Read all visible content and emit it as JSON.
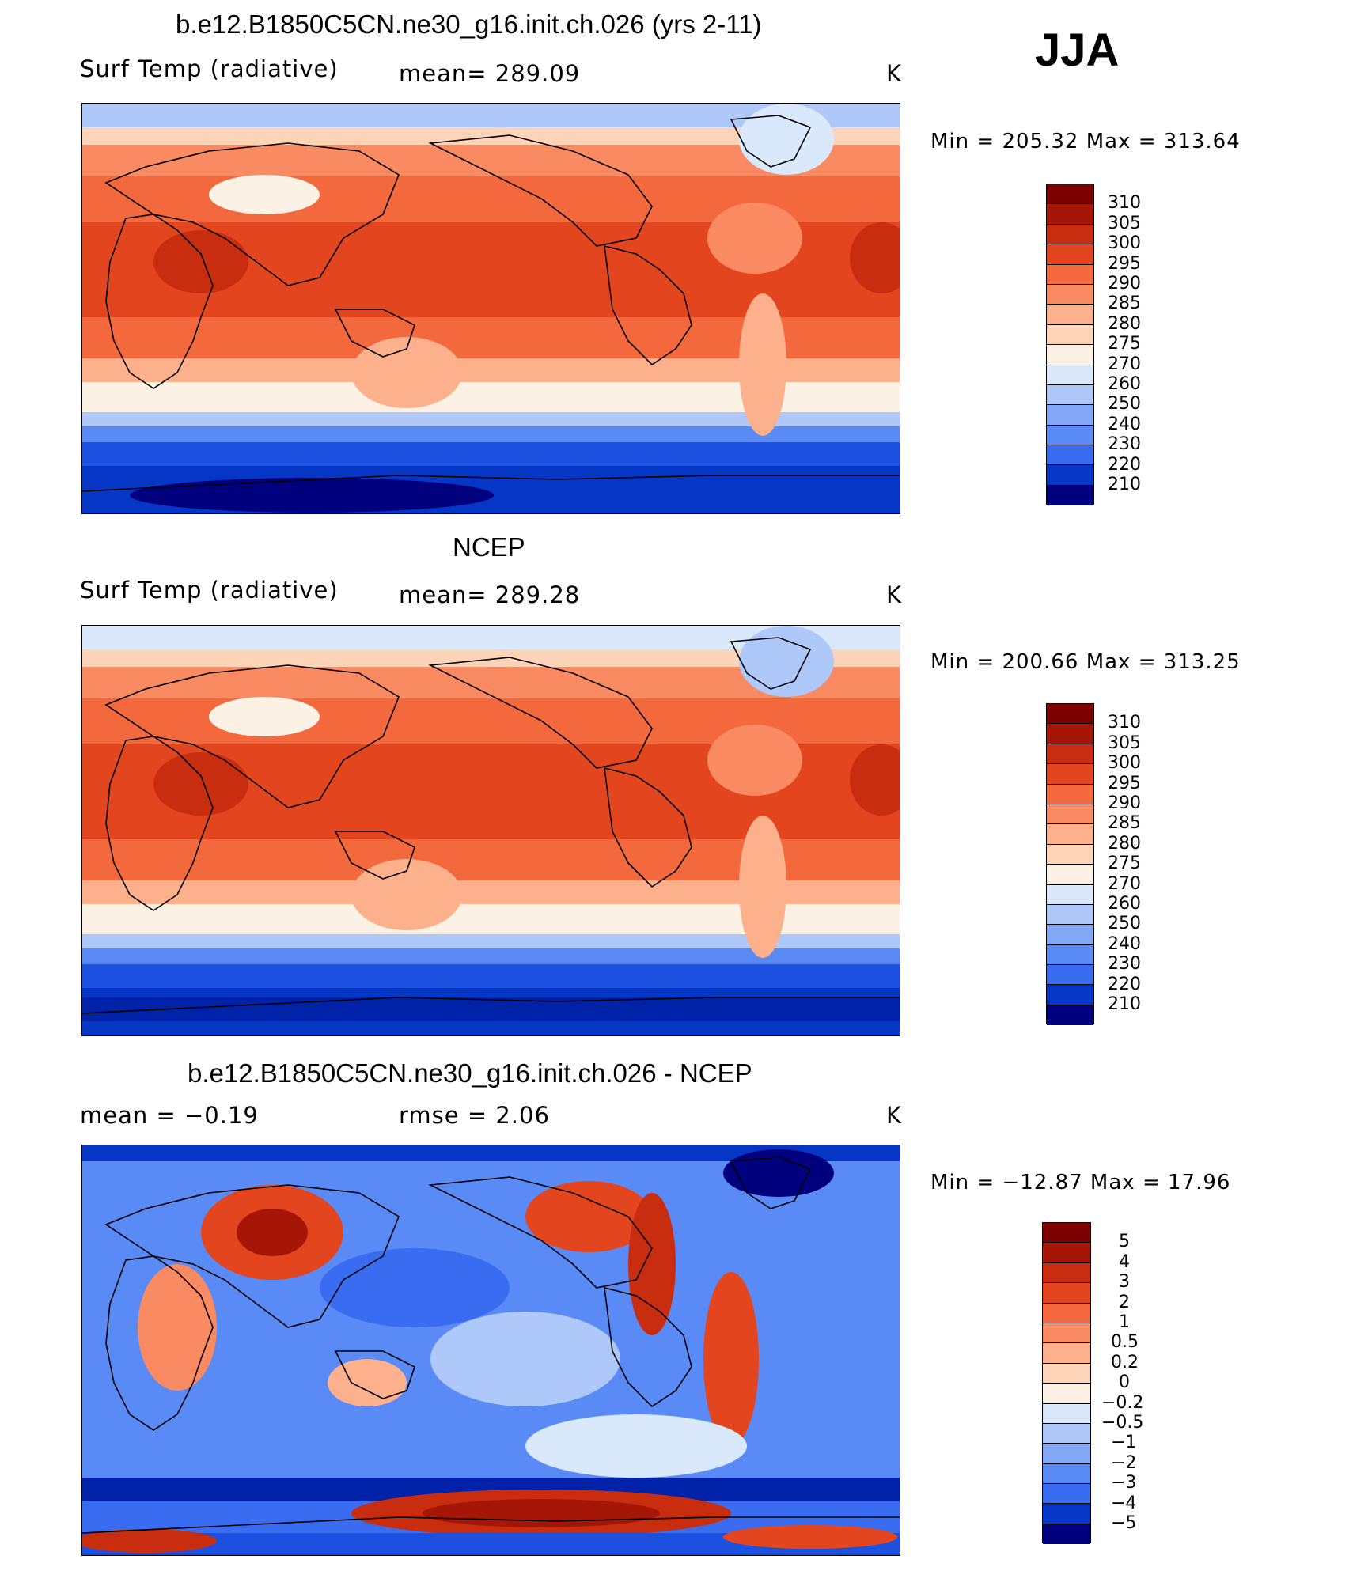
{
  "season": "JJA",
  "units": "K",
  "colors": {
    "abs_palette": [
      "#00007f",
      "#0022a8",
      "#0536c6",
      "#1c50e0",
      "#3a6cf2",
      "#5a8af5",
      "#82a8f7",
      "#aec8f9",
      "#d9e8fb",
      "#fbf1e5",
      "#fdd4b8",
      "#fcb08c",
      "#f98a62",
      "#f4683e",
      "#e3461e",
      "#c92d10",
      "#a61606",
      "#7c0000"
    ],
    "diff_palette": [
      "#00007f",
      "#0022a8",
      "#0536c6",
      "#1c50e0",
      "#3a6cf2",
      "#5a8af5",
      "#82a8f7",
      "#aec8f9",
      "#d9e8fb",
      "#fbf1e5",
      "#fdd4b8",
      "#fcb08c",
      "#f98a62",
      "#f4683e",
      "#e3461e",
      "#c92d10",
      "#a61606",
      "#7c0000"
    ]
  },
  "chart_data": [
    {
      "type": "heatmap",
      "title": "b.e12.B1850C5CN.ne30_g16.init.ch.026 (yrs 2-11)",
      "variable": "Surf Temp (radiative)",
      "mean_text": "mean=  289.09",
      "units": "K",
      "min_max_text": "Min  =  205.32  Max  =  313.64",
      "min": 205.32,
      "max": 313.64,
      "mean": 289.09,
      "colorbar_levels": [
        "310",
        "305",
        "300",
        "295",
        "290",
        "285",
        "280",
        "275",
        "270",
        "260",
        "250",
        "240",
        "230",
        "220",
        "210"
      ]
    },
    {
      "type": "heatmap",
      "title": "NCEP",
      "variable": "Surf Temp (radiative)",
      "mean_text": "mean=  289.28",
      "units": "K",
      "min_max_text": "Min  =  200.66  Max  =  313.25",
      "min": 200.66,
      "max": 313.25,
      "mean": 289.28,
      "colorbar_levels": [
        "310",
        "305",
        "300",
        "295",
        "290",
        "285",
        "280",
        "275",
        "270",
        "260",
        "250",
        "240",
        "230",
        "220",
        "210"
      ]
    },
    {
      "type": "heatmap",
      "title": "b.e12.B1850C5CN.ne30_g16.init.ch.026 - NCEP",
      "variable": "",
      "mean_text": "mean  =    −0.19",
      "rmse_text": "rmse  =     2.06",
      "units": "K",
      "min_max_text": "Min  =  −12.87  Max  =    17.96",
      "min": -12.87,
      "max": 17.96,
      "mean": -0.19,
      "rmse": 2.06,
      "colorbar_levels": [
        "5",
        "4",
        "3",
        "2",
        "1",
        "0.5",
        "0.2",
        "0",
        "−0.2",
        "−0.5",
        "−1",
        "−2",
        "−3",
        "−4",
        "−5"
      ]
    }
  ]
}
